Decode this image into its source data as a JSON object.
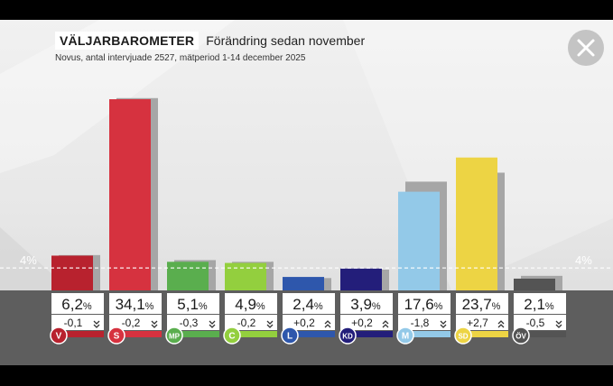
{
  "header": {
    "title": "VÄLJARBAROMETER",
    "subtitle": "Förändring sedan november",
    "meta": "Novus, antal intervjuade 2527, mätperiod 1-14 december 2025"
  },
  "close_icon": "close-icon",
  "colors": {
    "V": "#b8222e",
    "S": "#d6323f",
    "MP": "#5aae4e",
    "C": "#93cf3e",
    "L": "#2e57ac",
    "KD": "#231e7a",
    "M": "#93c9e8",
    "SD": "#edd444",
    "ÖV": "#545454",
    "shadow": "#a6a6a6"
  },
  "chart_data": {
    "type": "bar",
    "categories": [
      "V",
      "S",
      "MP",
      "C",
      "L",
      "KD",
      "M",
      "SD",
      "ÖV"
    ],
    "series": [
      {
        "values": [
          6.2,
          34.1,
          5.1,
          4.9,
          2.4,
          3.9,
          17.6,
          23.7,
          2.1
        ]
      },
      {
        "values": [
          6.3,
          34.3,
          5.4,
          5.1,
          2.2,
          3.7,
          19.4,
          21.0,
          2.6
        ]
      }
    ],
    "value_labels": [
      "6,2",
      "34,1",
      "5,1",
      "4,9",
      "2,4",
      "3,9",
      "17,6",
      "23,7",
      "2,1"
    ],
    "change_labels": [
      "-0,1",
      "-0,2",
      "-0,3",
      "-0,2",
      "+0,2",
      "+0,2",
      "-1,8",
      "+2,7",
      "-0,5"
    ],
    "change_direction": [
      "down",
      "down",
      "down",
      "down",
      "up",
      "up",
      "down",
      "up",
      "down"
    ],
    "unit": "%",
    "threshold": 4,
    "threshold_label": "4%",
    "ylim": [
      0,
      37
    ]
  }
}
